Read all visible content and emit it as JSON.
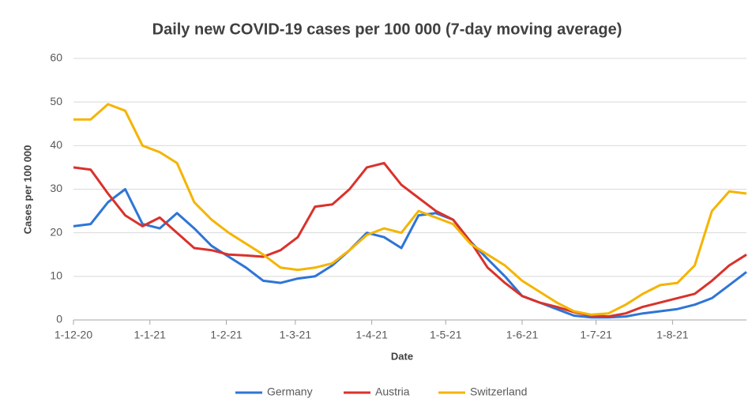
{
  "chart_data": {
    "type": "line",
    "title": "Daily new COVID-19 cases per 100 000 (7-day moving average)",
    "x_label": "Date",
    "y_label": "Cases per 100 000",
    "x": [
      "2020-12-01",
      "2020-12-08",
      "2020-12-15",
      "2020-12-22",
      "2020-12-29",
      "2021-01-05",
      "2021-01-12",
      "2021-01-19",
      "2021-01-26",
      "2021-02-02",
      "2021-02-09",
      "2021-02-16",
      "2021-02-23",
      "2021-03-02",
      "2021-03-09",
      "2021-03-16",
      "2021-03-23",
      "2021-03-30",
      "2021-04-06",
      "2021-04-13",
      "2021-04-20",
      "2021-04-27",
      "2021-05-04",
      "2021-05-11",
      "2021-05-18",
      "2021-05-25",
      "2021-06-01",
      "2021-06-08",
      "2021-06-15",
      "2021-06-22",
      "2021-06-29",
      "2021-07-06",
      "2021-07-13",
      "2021-07-20",
      "2021-07-27",
      "2021-08-03",
      "2021-08-10",
      "2021-08-17",
      "2021-08-24",
      "2021-08-31"
    ],
    "series": [
      {
        "name": "Germany",
        "color": "#2e75d6",
        "values": [
          21.5,
          22,
          27,
          30,
          22,
          21,
          24.5,
          21,
          17,
          14.5,
          12,
          9,
          8.5,
          9.5,
          10,
          12.5,
          16,
          20,
          19,
          16.5,
          24,
          24.5,
          23,
          18,
          14,
          10,
          5.5,
          4,
          2.5,
          1,
          0.6,
          0.6,
          0.8,
          1.5,
          2,
          2.5,
          3.5,
          5,
          8,
          11
        ]
      },
      {
        "name": "Austria",
        "color": "#d9322b",
        "values": [
          35,
          34.5,
          29,
          24,
          21.5,
          23.5,
          20,
          16.5,
          16,
          15,
          14.8,
          14.5,
          16,
          19,
          26,
          26.5,
          30,
          35,
          36,
          31,
          28,
          25,
          23,
          18,
          12,
          8.5,
          5.5,
          4,
          3,
          1.8,
          1,
          0.8,
          1.5,
          3,
          4,
          5,
          6,
          9,
          12.5,
          15
        ]
      },
      {
        "name": "Switzerland",
        "color": "#f5b400",
        "values": [
          46,
          46,
          49.5,
          48,
          40,
          38.5,
          36,
          27,
          23,
          20,
          17.5,
          15,
          12,
          11.5,
          12,
          13,
          16,
          19.5,
          21,
          20,
          25,
          23.5,
          22,
          17.5,
          15,
          12.5,
          9,
          6.5,
          4,
          2,
          1.2,
          1.5,
          3.5,
          6,
          8,
          8.5,
          12.5,
          25,
          29.5,
          29
        ]
      }
    ],
    "xlim": [
      "2020-12-01",
      "2021-08-31"
    ],
    "xticks": [
      {
        "value": "2020-12-01",
        "label": "1-12-20"
      },
      {
        "value": "2021-01-01",
        "label": "1-1-21"
      },
      {
        "value": "2021-02-01",
        "label": "1-2-21"
      },
      {
        "value": "2021-03-01",
        "label": "1-3-21"
      },
      {
        "value": "2021-04-01",
        "label": "1-4-21"
      },
      {
        "value": "2021-05-01",
        "label": "1-5-21"
      },
      {
        "value": "2021-06-01",
        "label": "1-6-21"
      },
      {
        "value": "2021-07-01",
        "label": "1-7-21"
      },
      {
        "value": "2021-08-01",
        "label": "1-8-21"
      }
    ],
    "ylim": [
      0,
      60
    ],
    "yticks": [
      0,
      10,
      20,
      30,
      40,
      50,
      60
    ],
    "grid": true,
    "legend": "bottom"
  }
}
